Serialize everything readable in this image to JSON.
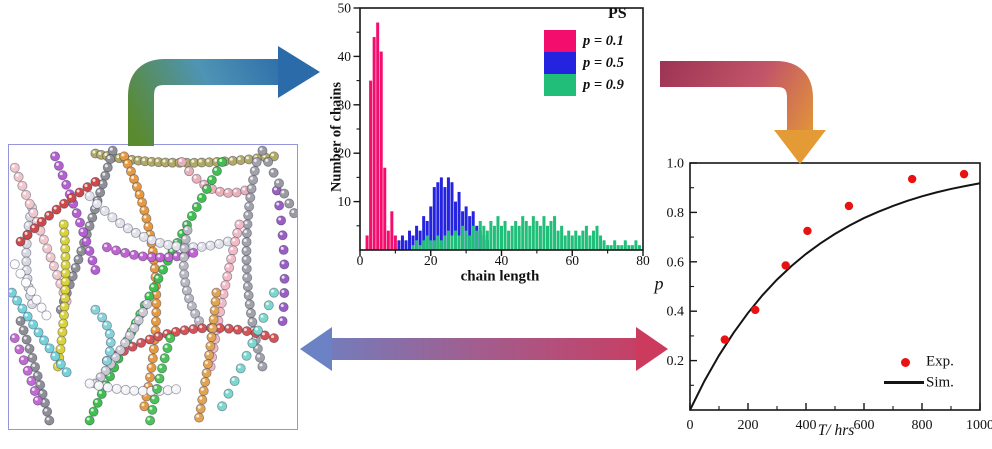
{
  "figure": {
    "background": "#ffffff",
    "snapshot": {
      "description": "polymer-network-simulation-snapshot",
      "border_color": "#9495dd",
      "bead_outline": "rgba(45,45,75,0.45)",
      "chains": [
        {
          "color": "#b0aa66",
          "n": 26,
          "pts": [
            [
              30,
              3
            ],
            [
              55,
              9
            ],
            [
              92,
              4
            ]
          ]
        },
        {
          "color": "#8f8f96",
          "n": 20,
          "pts": [
            [
              36,
              2
            ],
            [
              28,
              30
            ],
            [
              18,
              58
            ]
          ]
        },
        {
          "color": "#d8d8e0",
          "n": 12,
          "pts": [
            [
              8,
              22
            ],
            [
              4,
              40
            ],
            [
              8,
              56
            ]
          ]
        },
        {
          "color": "#e8b0b8",
          "n": 9,
          "pts": [
            [
              60,
              6
            ],
            [
              70,
              20
            ],
            [
              82,
              16
            ]
          ]
        },
        {
          "color": "#e49a42",
          "n": 30,
          "pts": [
            [
              40,
              4
            ],
            [
              58,
              42
            ],
            [
              47,
              92
            ]
          ]
        },
        {
          "color": "#3fbf4f",
          "n": 30,
          "pts": [
            [
              74,
              6
            ],
            [
              48,
              52
            ],
            [
              28,
              97
            ]
          ]
        },
        {
          "color": "#f0c8cc",
          "n": 16,
          "pts": [
            [
              2,
              8
            ],
            [
              12,
              32
            ],
            [
              20,
              55
            ]
          ]
        },
        {
          "color": "#b55fd0",
          "n": 13,
          "pts": [
            [
              16,
              4
            ],
            [
              24,
              24
            ],
            [
              30,
              44
            ]
          ]
        },
        {
          "color": "#cc4949",
          "n": 11,
          "pts": [
            [
              4,
              34
            ],
            [
              16,
              22
            ],
            [
              30,
              13
            ]
          ]
        },
        {
          "color": "#d8d23e",
          "n": 18,
          "pts": [
            [
              19,
              28
            ],
            [
              21,
              52
            ],
            [
              17,
              78
            ]
          ]
        },
        {
          "color": "#e2e2ea",
          "n": 18,
          "pts": [
            [
              28,
              18
            ],
            [
              50,
              42
            ],
            [
              76,
              34
            ]
          ]
        },
        {
          "color": "#bf63cf",
          "n": 11,
          "pts": [
            [
              34,
              36
            ],
            [
              50,
              42
            ],
            [
              64,
              38
            ]
          ]
        },
        {
          "color": "#74d2da",
          "n": 11,
          "pts": [
            [
              1,
              52
            ],
            [
              10,
              66
            ],
            [
              20,
              80
            ]
          ]
        },
        {
          "color": "#a2a2aa",
          "n": 24,
          "pts": [
            [
              86,
              6
            ],
            [
              78,
              42
            ],
            [
              88,
              78
            ]
          ]
        },
        {
          "color": "#f2bac4",
          "n": 17,
          "pts": [
            [
              80,
              28
            ],
            [
              74,
              52
            ],
            [
              70,
              78
            ]
          ]
        },
        {
          "color": "#b8b8c0",
          "n": 12,
          "pts": [
            [
              62,
              30
            ],
            [
              58,
              48
            ],
            [
              66,
              62
            ]
          ]
        },
        {
          "color": "#d25454",
          "n": 20,
          "pts": [
            [
              34,
              76
            ],
            [
              62,
              58
            ],
            [
              92,
              68
            ]
          ]
        },
        {
          "color": "#e0a455",
          "n": 15,
          "pts": [
            [
              72,
              52
            ],
            [
              70,
              74
            ],
            [
              66,
              96
            ]
          ]
        },
        {
          "color": "#c9c9d2",
          "n": 12,
          "pts": [
            [
              48,
              56
            ],
            [
              40,
              72
            ],
            [
              30,
              84
            ]
          ]
        },
        {
          "color": "#f4f4f6",
          "n": 11,
          "pts": [
            [
              28,
              84
            ],
            [
              44,
              88
            ],
            [
              58,
              86
            ]
          ]
        },
        {
          "color": "#7cd8cc",
          "n": 10,
          "pts": [
            [
              92,
              52
            ],
            [
              84,
              72
            ],
            [
              74,
              92
            ]
          ]
        },
        {
          "color": "#9a5fc4",
          "n": 10,
          "pts": [
            [
              93,
              16
            ],
            [
              97,
              40
            ],
            [
              95,
              62
            ]
          ]
        },
        {
          "color": "#8e8e96",
          "n": 12,
          "pts": [
            [
              4,
              62
            ],
            [
              10,
              80
            ],
            [
              14,
              97
            ]
          ]
        },
        {
          "color": "#4cc258",
          "n": 9,
          "pts": [
            [
              56,
              68
            ],
            [
              52,
              82
            ],
            [
              49,
              97
            ]
          ]
        },
        {
          "color": "#fbfbfd",
          "n": 7,
          "pts": [
            [
              2,
              42
            ],
            [
              8,
              52
            ],
            [
              13,
              60
            ]
          ]
        },
        {
          "color": "#9a9aa2",
          "n": 7,
          "pts": [
            [
              88,
              2
            ],
            [
              94,
              14
            ],
            [
              99,
              24
            ]
          ]
        },
        {
          "color": "#c06ad2",
          "n": 7,
          "pts": [
            [
              2,
              68
            ],
            [
              7,
              80
            ],
            [
              10,
              90
            ]
          ]
        },
        {
          "color": "#86d2d8",
          "n": 7,
          "pts": [
            [
              30,
              58
            ],
            [
              38,
              66
            ],
            [
              34,
              76
            ]
          ]
        }
      ]
    },
    "arrows": {
      "snapshot_to_histogram": {
        "start_color": "#5a8a30",
        "mid_color": "#4e94b5",
        "end_color": "#2b6ba9"
      },
      "histogram_to_kinetics": {
        "start_color": "#9e3555",
        "mid_color": "#c25568",
        "end_color": "#e59b35"
      },
      "snapshot_kinetics_double": {
        "start_color": "#6b82c4",
        "mid_color": "#a45c8c",
        "end_color": "#cc3a5e"
      }
    }
  },
  "chart_data": [
    {
      "type": "bar",
      "title": "",
      "xlabel": "chain length",
      "ylabel": "Number of chains",
      "legend_title": "PS",
      "legend_position": "upper right",
      "xlim": [
        0,
        80
      ],
      "ylim": [
        0,
        50
      ],
      "xticks": [
        0,
        20,
        40,
        60,
        80
      ],
      "yticks": [
        10,
        20,
        30,
        40,
        50
      ],
      "bin_width": 1,
      "grid": false,
      "series": [
        {
          "name": "p = 0.1",
          "color": "#f30e6e",
          "bars": [
            [
              2,
              3
            ],
            [
              3,
              35
            ],
            [
              4,
              44
            ],
            [
              5,
              47
            ],
            [
              6,
              41
            ],
            [
              7,
              17
            ],
            [
              8,
              4
            ],
            [
              9,
              8
            ],
            [
              10,
              3
            ]
          ]
        },
        {
          "name": "p = 0.5",
          "color": "#2424e0",
          "bars": [
            [
              11,
              2
            ],
            [
              12,
              3
            ],
            [
              13,
              2
            ],
            [
              14,
              4
            ],
            [
              15,
              3
            ],
            [
              16,
              5
            ],
            [
              17,
              4
            ],
            [
              18,
              7
            ],
            [
              19,
              6
            ],
            [
              20,
              9
            ],
            [
              21,
              13
            ],
            [
              22,
              14
            ],
            [
              23,
              15
            ],
            [
              24,
              13
            ],
            [
              25,
              15
            ],
            [
              26,
              14
            ],
            [
              27,
              10
            ],
            [
              28,
              12
            ],
            [
              29,
              8
            ],
            [
              30,
              9
            ],
            [
              31,
              7
            ],
            [
              32,
              8
            ],
            [
              33,
              5
            ],
            [
              34,
              4
            ],
            [
              35,
              3
            ],
            [
              36,
              2
            ]
          ]
        },
        {
          "name": "p = 0.9",
          "color": "#20be78",
          "bars": [
            [
              15,
              1
            ],
            [
              16,
              2
            ],
            [
              17,
              1
            ],
            [
              18,
              2
            ],
            [
              19,
              3
            ],
            [
              20,
              2
            ],
            [
              21,
              2
            ],
            [
              22,
              3
            ],
            [
              23,
              2
            ],
            [
              24,
              3
            ],
            [
              25,
              4
            ],
            [
              26,
              3
            ],
            [
              27,
              4
            ],
            [
              28,
              3
            ],
            [
              29,
              5
            ],
            [
              30,
              4
            ],
            [
              31,
              3
            ],
            [
              32,
              5
            ],
            [
              33,
              4
            ],
            [
              34,
              6
            ],
            [
              35,
              5
            ],
            [
              36,
              4
            ],
            [
              37,
              6
            ],
            [
              38,
              5
            ],
            [
              39,
              7
            ],
            [
              40,
              5
            ],
            [
              41,
              6
            ],
            [
              42,
              4
            ],
            [
              43,
              5
            ],
            [
              44,
              6
            ],
            [
              45,
              5
            ],
            [
              46,
              7
            ],
            [
              47,
              6
            ],
            [
              48,
              5
            ],
            [
              49,
              7
            ],
            [
              50,
              6
            ],
            [
              51,
              5
            ],
            [
              52,
              7
            ],
            [
              53,
              5
            ],
            [
              54,
              6
            ],
            [
              55,
              7
            ],
            [
              56,
              4
            ],
            [
              57,
              5
            ],
            [
              58,
              3
            ],
            [
              59,
              4
            ],
            [
              60,
              3
            ],
            [
              61,
              4
            ],
            [
              62,
              3
            ],
            [
              63,
              4
            ],
            [
              64,
              5
            ],
            [
              65,
              3
            ],
            [
              66,
              4
            ],
            [
              67,
              5
            ],
            [
              68,
              3
            ],
            [
              69,
              2
            ],
            [
              70,
              1
            ],
            [
              71,
              1
            ],
            [
              72,
              2
            ],
            [
              73,
              1
            ],
            [
              74,
              1
            ],
            [
              75,
              2
            ],
            [
              76,
              1
            ],
            [
              77,
              1
            ],
            [
              78,
              2
            ],
            [
              79,
              1
            ]
          ]
        }
      ]
    },
    {
      "type": "scatter",
      "title": "",
      "xlabel": "T/ hrs",
      "ylabel": "p",
      "xlim": [
        0,
        1000
      ],
      "ylim": [
        0,
        1.0
      ],
      "xticks": [
        0,
        200,
        400,
        600,
        800,
        1000
      ],
      "yticks": [
        0.2,
        0.4,
        0.6,
        0.8,
        1.0
      ],
      "legend_position": "lower right",
      "grid": false,
      "series": [
        {
          "name": "Exp.",
          "type": "scatter",
          "color": "#e81212",
          "points": [
            [
              120,
              0.285
            ],
            [
              225,
              0.405
            ],
            [
              330,
              0.585
            ],
            [
              405,
              0.725
            ],
            [
              548,
              0.826
            ],
            [
              766,
              0.935
            ],
            [
              945,
              0.955
            ]
          ]
        },
        {
          "name": "Sim.",
          "type": "line",
          "color": "#141414",
          "points": [
            [
              0,
              0
            ],
            [
              50,
              0.118
            ],
            [
              100,
              0.221
            ],
            [
              150,
              0.312
            ],
            [
              200,
              0.393
            ],
            [
              250,
              0.465
            ],
            [
              300,
              0.528
            ],
            [
              350,
              0.583
            ],
            [
              400,
              0.632
            ],
            [
              450,
              0.675
            ],
            [
              500,
              0.713
            ],
            [
              550,
              0.747
            ],
            [
              600,
              0.777
            ],
            [
              650,
              0.803
            ],
            [
              700,
              0.826
            ],
            [
              750,
              0.847
            ],
            [
              800,
              0.865
            ],
            [
              850,
              0.881
            ],
            [
              900,
              0.895
            ],
            [
              950,
              0.907
            ],
            [
              1000,
              0.918
            ]
          ]
        }
      ]
    }
  ]
}
